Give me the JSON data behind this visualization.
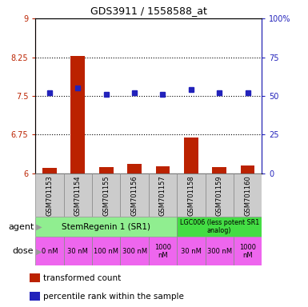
{
  "title": "GDS3911 / 1558588_at",
  "samples": [
    "GSM701153",
    "GSM701154",
    "GSM701155",
    "GSM701156",
    "GSM701157",
    "GSM701158",
    "GSM701159",
    "GSM701160"
  ],
  "red_values": [
    6.1,
    8.28,
    6.12,
    6.18,
    6.14,
    6.7,
    6.12,
    6.15
  ],
  "blue_values": [
    52,
    55,
    51,
    52,
    51,
    54,
    52,
    52
  ],
  "ylim_left": [
    6,
    9
  ],
  "ylim_right": [
    0,
    100
  ],
  "yticks_left": [
    6,
    6.75,
    7.5,
    8.25,
    9
  ],
  "yticks_right": [
    0,
    25,
    50,
    75,
    100
  ],
  "ytick_labels_left": [
    "6",
    "6.75",
    "7.5",
    "8.25",
    "9"
  ],
  "ytick_labels_right": [
    "0",
    "25",
    "50",
    "75",
    "100%"
  ],
  "dose_labels": [
    "0 nM",
    "30 nM",
    "100 nM",
    "300 nM",
    "1000\nnM",
    "30 nM",
    "300 nM",
    "1000\nnM"
  ],
  "red_color": "#bb2200",
  "blue_color": "#2222bb",
  "bar_width": 0.5,
  "baseline": 6.0,
  "agent_sr1_label": "StemRegenin 1 (SR1)",
  "agent_lgc_label": "LGC006 (less potent SR1\nanalog)",
  "agent_color": "#90ee90",
  "agent_lgc_color": "#44dd44",
  "dose_color": "#ee66ee",
  "sample_bg_color": "#cccccc",
  "legend_red_label": "transformed count",
  "legend_blue_label": "percentile rank within the sample",
  "agent_text": "agent",
  "dose_text": "dose"
}
